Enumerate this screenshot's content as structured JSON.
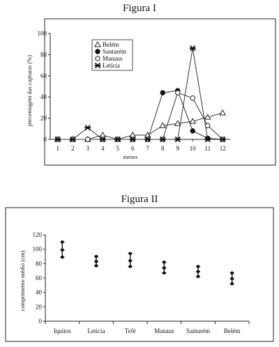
{
  "figures": {
    "fig1_title": "Figura I",
    "fig2_title": "Figura II"
  },
  "chart_data": [
    {
      "type": "line",
      "title": "Figura I",
      "xlabel": "meses",
      "ylabel": "percentagem das capturas (%)",
      "x": [
        1,
        2,
        3,
        4,
        5,
        6,
        7,
        8,
        9,
        10,
        11,
        12
      ],
      "xlim": [
        0.5,
        12.5
      ],
      "ylim": [
        0,
        100
      ],
      "yticks": [
        0,
        20,
        40,
        60,
        80,
        100
      ],
      "grid": false,
      "legend": "top-left",
      "series": [
        {
          "name": "Belém",
          "marker": "triangle-open",
          "values": [
            0,
            0,
            0,
            4,
            0,
            4,
            4,
            13,
            15,
            17,
            21,
            25
          ]
        },
        {
          "name": "Santarém",
          "marker": "circle-filled",
          "values": [
            0,
            0,
            0,
            0,
            0,
            0,
            0,
            44,
            46,
            8,
            1,
            0
          ]
        },
        {
          "name": "Manaus",
          "marker": "circle-open",
          "values": [
            0,
            0,
            0,
            0,
            0,
            0,
            0,
            0,
            44,
            39,
            13,
            0
          ]
        },
        {
          "name": "Letícia",
          "marker": "x-star",
          "values": [
            0,
            0,
            11,
            0,
            0,
            0,
            0,
            0,
            0,
            86,
            0,
            0
          ]
        }
      ]
    },
    {
      "type": "scatter",
      "title": "Figura II",
      "xlabel": "",
      "ylabel": "comprimento médio (cm)",
      "categories": [
        "Iquitos",
        "Letícia",
        "Tefé",
        "Manaus",
        "Santarém",
        "Belém"
      ],
      "ylim": [
        0,
        120
      ],
      "yticks": [
        0,
        20,
        40,
        60,
        80,
        100,
        120
      ],
      "grid": false,
      "series": [
        {
          "name": "",
          "means": [
            99,
            83,
            84,
            74,
            69,
            59
          ],
          "lower": [
            89,
            77,
            76,
            67,
            62,
            52
          ],
          "upper": [
            110,
            90,
            94,
            82,
            76,
            67
          ]
        }
      ]
    }
  ]
}
